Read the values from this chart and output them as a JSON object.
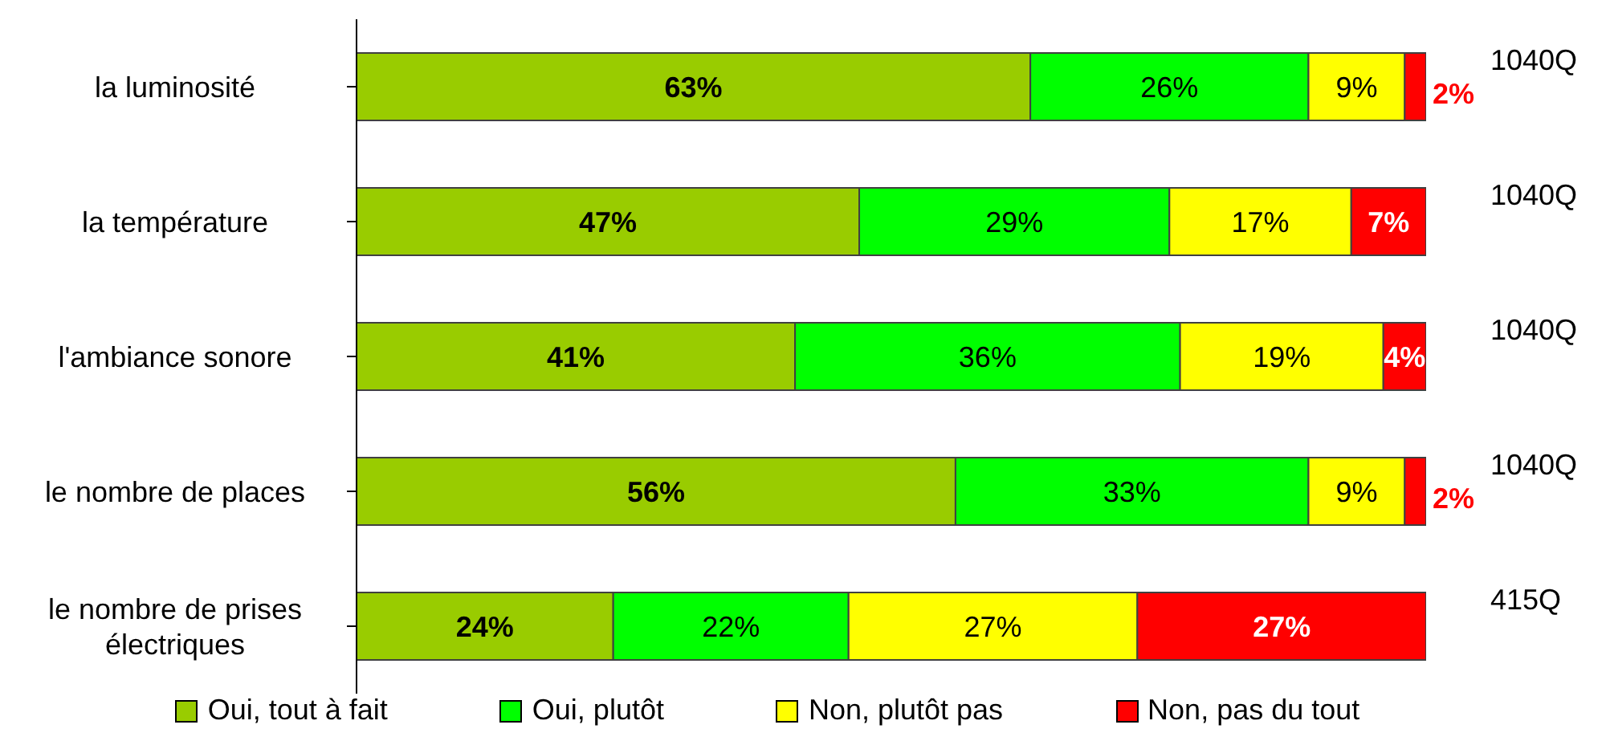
{
  "chart_data": {
    "type": "bar",
    "orientation": "horizontal",
    "stacked": true,
    "legend": "bottom",
    "categories": [
      "la luminosité",
      "la température",
      "l'ambiance sonore",
      "le nombre de places",
      "le nombre de prises électriques"
    ],
    "series": [
      {
        "name": "Oui, tout à fait",
        "color": "#99cc00",
        "values": [
          63,
          47,
          41,
          56,
          24
        ],
        "value_labels": [
          "63%",
          "47%",
          "41%",
          "56%",
          "24%"
        ]
      },
      {
        "name": "Oui, plutôt",
        "color": "#00ff00",
        "values": [
          26,
          29,
          36,
          33,
          22
        ],
        "value_labels": [
          "26%",
          "29%",
          "36%",
          "33%",
          "22%"
        ]
      },
      {
        "name": "Non, plutôt pas",
        "color": "#ffff00",
        "values": [
          9,
          17,
          19,
          9,
          27
        ],
        "value_labels": [
          "9%",
          "17%",
          "19%",
          "9%",
          "27%"
        ]
      },
      {
        "name": "Non, pas du tout",
        "color": "#ff0000",
        "values": [
          2,
          7,
          4,
          2,
          27
        ],
        "value_labels": [
          "2%",
          "7%",
          "4%",
          "2%",
          "27%"
        ]
      }
    ],
    "annotations": [
      "1040Q",
      "1040Q",
      "1040Q",
      "1040Q",
      "415Q"
    ]
  }
}
